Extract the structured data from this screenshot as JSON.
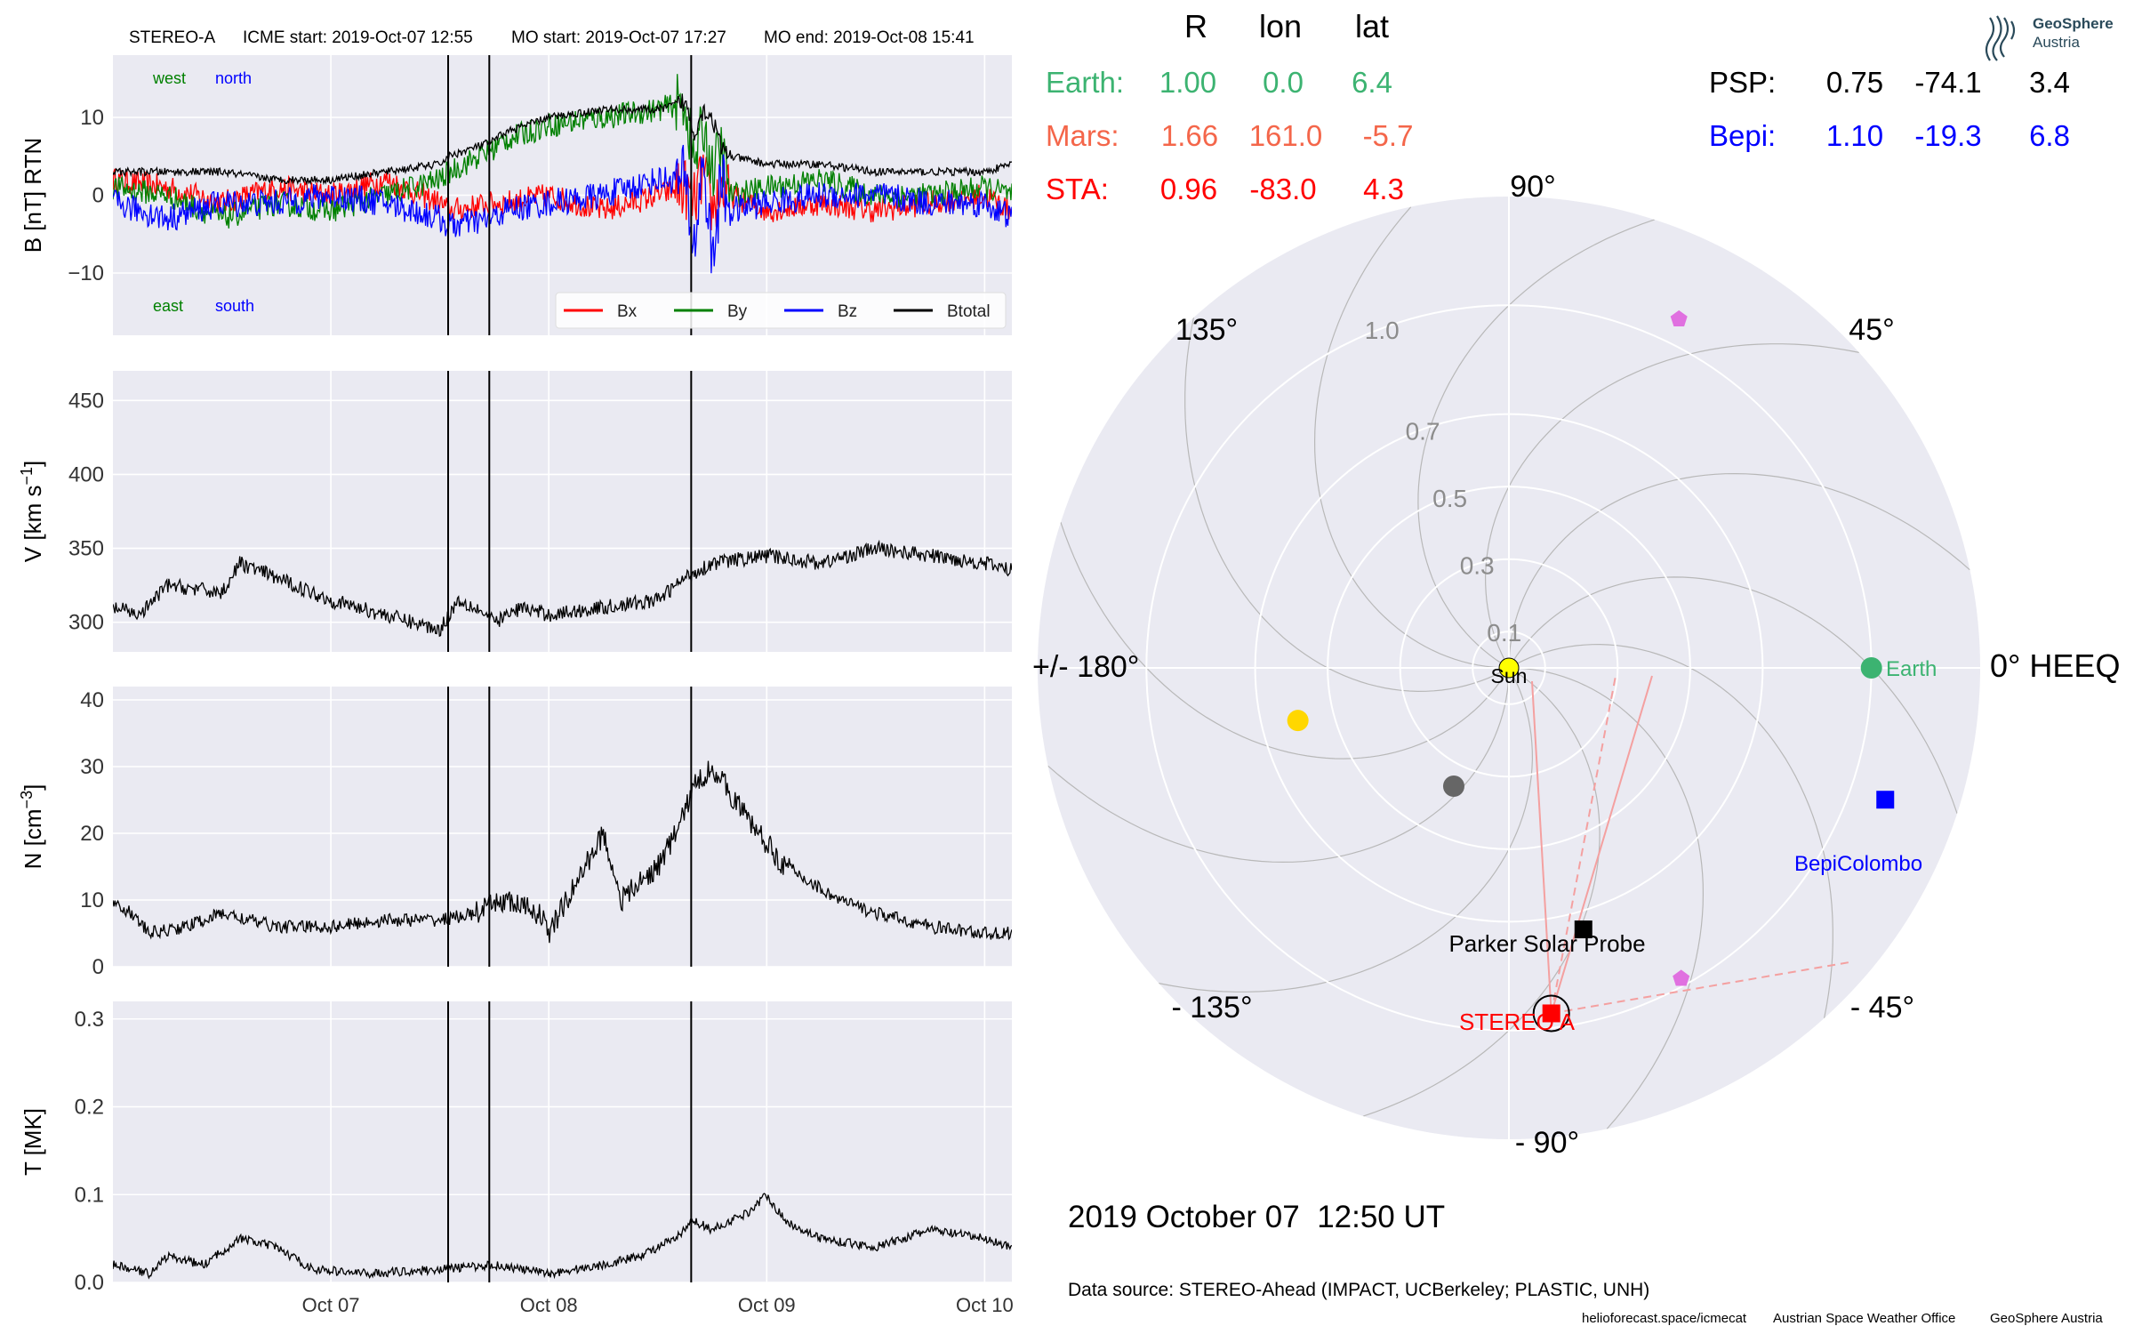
{
  "header": {
    "spacecraft": "STEREO-A",
    "icme_start": "ICME start: 2019-Oct-07 12:55",
    "mo_start": "MO start: 2019-Oct-07 17:27",
    "mo_end": "MO end: 2019-Oct-08 15:41"
  },
  "colors": {
    "bx": "#ff0000",
    "by": "#008000",
    "bz": "#0000ff",
    "btotal": "#000000",
    "earth": "#3cb371",
    "mars": "#f4664a",
    "sta": "#ff0000",
    "psp": "#000000",
    "bepi": "#0000ff",
    "panel_bg": "#eaeaf2"
  },
  "event_markers": [
    "2019-10-07T12:55",
    "2019-10-07T17:27",
    "2019-10-08T15:41"
  ],
  "chart_data": [
    {
      "type": "line",
      "panel": "magnetic field",
      "ylabel": "B [nT] RTN",
      "ylim": [
        -18,
        18
      ],
      "yticks": [
        10,
        0,
        -10
      ],
      "ytick_labels": [
        "10",
        "0",
        "−10"
      ],
      "corner_labels": {
        "top_left": "west",
        "top_right": "north",
        "bottom_left": "east",
        "bottom_right": "south"
      },
      "legend": {
        "position": "lower-right",
        "entries": [
          "Bx",
          "By",
          "Bz",
          "Btotal"
        ]
      },
      "x_hours": [
        0,
        6,
        12,
        18,
        24,
        30,
        36,
        37,
        42,
        43,
        48,
        54,
        60,
        63,
        64,
        65,
        66,
        67,
        68,
        72,
        78,
        84,
        90,
        96,
        99
      ],
      "series": [
        {
          "name": "Bx",
          "values": [
            2,
            1,
            -1,
            1,
            0,
            2,
            -1,
            -2,
            -1,
            -1,
            0,
            -2,
            0,
            1,
            -1,
            3,
            -2,
            1,
            0,
            -2,
            -1,
            -2,
            -1,
            0,
            -2
          ]
        },
        {
          "name": "By",
          "values": [
            1,
            0,
            -3,
            -1,
            -2,
            0,
            2,
            3,
            6,
            7,
            9,
            10,
            11,
            12,
            4,
            9,
            3,
            6,
            0,
            1,
            2,
            0,
            0,
            1,
            0
          ]
        },
        {
          "name": "Bz",
          "values": [
            -1,
            -3,
            -1,
            -1,
            0,
            -1,
            -3,
            -4,
            -3,
            -2,
            -1,
            0,
            2,
            2,
            -7,
            5,
            -9,
            2,
            -2,
            -1,
            0,
            0,
            -1,
            -1,
            -3
          ]
        },
        {
          "name": "Btotal",
          "values": [
            3,
            3,
            3,
            2,
            2,
            3,
            4,
            5,
            7,
            8,
            10,
            11,
            11,
            12,
            8,
            11,
            10,
            6,
            5,
            4,
            4,
            3,
            3,
            3,
            4
          ]
        }
      ]
    },
    {
      "type": "line",
      "panel": "speed",
      "ylabel": "V [km s^-1]",
      "ylim": [
        280,
        470
      ],
      "yticks": [
        450,
        400,
        350,
        300
      ],
      "ytick_labels": [
        "450",
        "400",
        "350",
        "300"
      ],
      "x_hours": [
        0,
        3,
        6,
        12,
        14,
        18,
        24,
        30,
        36,
        38,
        40,
        42,
        45,
        48,
        54,
        60,
        63,
        66,
        72,
        78,
        84,
        90,
        96,
        99
      ],
      "series": [
        {
          "name": "V",
          "values": [
            310,
            305,
            325,
            320,
            340,
            330,
            315,
            305,
            295,
            315,
            310,
            300,
            310,
            305,
            310,
            315,
            330,
            340,
            345,
            340,
            350,
            345,
            340,
            335
          ]
        }
      ]
    },
    {
      "type": "line",
      "panel": "density",
      "ylabel": "N [cm^-3]",
      "ylim": [
        0,
        42
      ],
      "yticks": [
        40,
        30,
        20,
        10,
        0
      ],
      "ytick_labels": [
        "40",
        "30",
        "20",
        "10",
        "0"
      ],
      "x_hours": [
        0,
        2,
        4,
        8,
        12,
        18,
        24,
        30,
        36,
        40,
        43,
        47,
        48,
        52,
        54,
        56,
        60,
        62,
        64,
        66,
        70,
        74,
        80,
        84,
        90,
        96,
        99
      ],
      "series": [
        {
          "name": "N",
          "values": [
            10,
            8,
            5,
            6,
            8,
            6,
            6,
            7,
            7,
            8,
            10,
            8,
            5,
            15,
            20,
            10,
            15,
            20,
            27,
            30,
            22,
            15,
            10,
            8,
            6,
            5,
            5
          ]
        }
      ]
    },
    {
      "type": "line",
      "panel": "temperature",
      "ylabel": "T [MK]",
      "ylim": [
        0,
        0.32
      ],
      "yticks": [
        0.3,
        0.2,
        0.1,
        0.0
      ],
      "ytick_labels": [
        "0.3",
        "0.2",
        "0.1",
        "0.0"
      ],
      "xtick_labels": [
        "Oct 07",
        "Oct 08",
        "Oct 09",
        "Oct 10"
      ],
      "x_hours": [
        0,
        4,
        6,
        10,
        14,
        18,
        22,
        28,
        36,
        42,
        48,
        54,
        58,
        62,
        64,
        66,
        70,
        72,
        74,
        78,
        84,
        90,
        96,
        99
      ],
      "series": [
        {
          "name": "T",
          "values": [
            0.02,
            0.01,
            0.03,
            0.02,
            0.05,
            0.04,
            0.015,
            0.01,
            0.015,
            0.02,
            0.01,
            0.02,
            0.03,
            0.05,
            0.07,
            0.06,
            0.08,
            0.1,
            0.07,
            0.05,
            0.04,
            0.06,
            0.05,
            0.04
          ]
        }
      ]
    },
    {
      "type": "scatter",
      "panel": "polar position plot",
      "r_tick_labels": [
        "0.1",
        "0.3",
        "0.5",
        "0.7",
        "1.0"
      ],
      "r_ticks": [
        0.1,
        0.3,
        0.5,
        0.7,
        1.0
      ],
      "r_max": 1.3,
      "angle_labels": {
        "0": "0° HEEQ",
        "45": "45°",
        "90": "90°",
        "135": "135°",
        "180": "+/- 180°",
        "-135": "- 135°",
        "-90": "- 90°",
        "-45": "- 45°"
      },
      "points": [
        {
          "label": "Sun",
          "r": 0.0,
          "lon": 0,
          "shape": "circle",
          "color": "#ffff00"
        },
        {
          "label": "Earth",
          "r": 1.0,
          "lon": 0,
          "shape": "circle",
          "color": "#3cb371"
        },
        {
          "label": "BepiColombo",
          "r": 1.1,
          "lon": -19.3,
          "shape": "square",
          "color": "#0000ff"
        },
        {
          "label": "Parker Solar Probe",
          "r": 0.75,
          "lon": -74.1,
          "shape": "square",
          "color": "#000000"
        },
        {
          "label": "STEREO A",
          "r": 0.96,
          "lon": -83.0,
          "shape": "square",
          "color": "#ff0000"
        },
        {
          "label": "",
          "r": 0.6,
          "lon": -166,
          "shape": "circle",
          "color": "#ffd700"
        },
        {
          "label": "",
          "r": 0.36,
          "lon": -115,
          "shape": "circle",
          "color": "#666666"
        },
        {
          "label": "",
          "r": 1.07,
          "lon": 64,
          "shape": "pentagon",
          "color": "#e070e0"
        },
        {
          "label": "",
          "r": 0.98,
          "lon": -61,
          "shape": "pentagon",
          "color": "#e070e0"
        }
      ]
    }
  ],
  "positions_table": {
    "headers": [
      "R",
      "lon",
      "lat"
    ],
    "left_rows": [
      {
        "name": "Earth:",
        "r": "1.00",
        "lon": "0.0",
        "lat": "6.4",
        "color": "#3cb371"
      },
      {
        "name": "Mars:",
        "r": "1.66",
        "lon": "161.0",
        "lat": "-5.7",
        "color": "#f4664a"
      },
      {
        "name": "STA:",
        "r": "0.96",
        "lon": "-83.0",
        "lat": "4.3",
        "color": "#ff0000"
      }
    ],
    "right_rows": [
      {
        "name": "PSP:",
        "r": "0.75",
        "lon": "-74.1",
        "lat": "3.4",
        "color": "#000000"
      },
      {
        "name": "Bepi:",
        "r": "1.10",
        "lon": "-19.3",
        "lat": "6.8",
        "color": "#0000ff"
      }
    ]
  },
  "logo": {
    "name": "GeoSphere",
    "sub": "Austria"
  },
  "date_text": "2019 October 07  12:50 UT",
  "data_source": "Data source: STEREO-Ahead (IMPACT, UCBerkeley; PLASTIC, UNH)",
  "footer": {
    "left": "helioforecast.space/icmecat",
    "middle": "Austrian Space Weather Office",
    "right": "GeoSphere Austria"
  }
}
